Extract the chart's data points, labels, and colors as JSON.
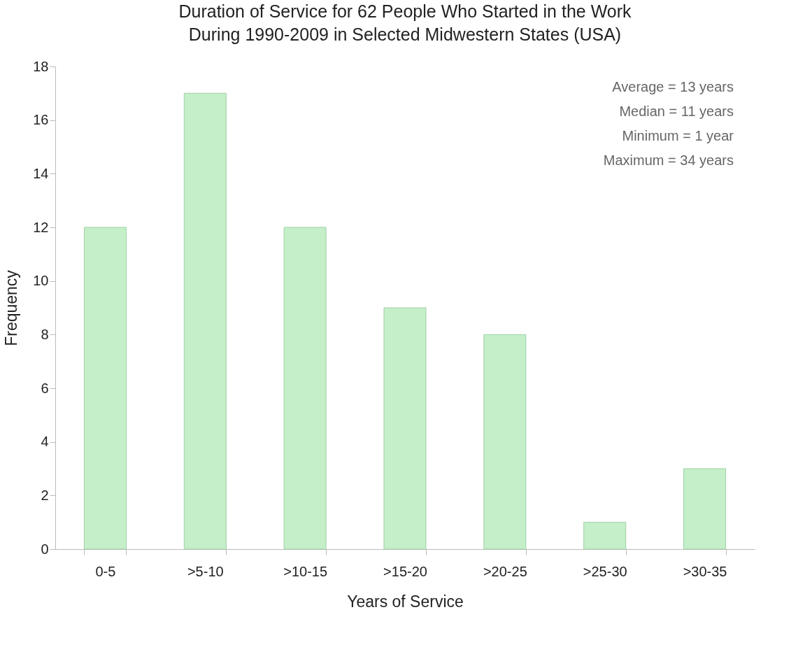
{
  "chart_data": {
    "type": "bar",
    "title": "Duration of Service for 62 People Who Started in the Work\nDuring 1990-2009 in Selected Midwestern States (USA)",
    "xlabel": "Years of Service",
    "ylabel": "Frequency",
    "categories": [
      "0-5",
      ">5-10",
      ">10-15",
      ">15-20",
      ">20-25",
      ">25-30",
      ">30-35"
    ],
    "values": [
      12,
      17,
      12,
      9,
      8,
      1,
      3
    ],
    "color": "#c4efc9",
    "ylim": [
      0,
      18
    ],
    "yticks": [
      0,
      2,
      4,
      6,
      8,
      10,
      12,
      14,
      16,
      18
    ],
    "grid": false,
    "annotations": [
      "Average = 13 years",
      "Median = 11 years",
      "Minimum = 1 year",
      "Maximum = 34 years"
    ]
  }
}
